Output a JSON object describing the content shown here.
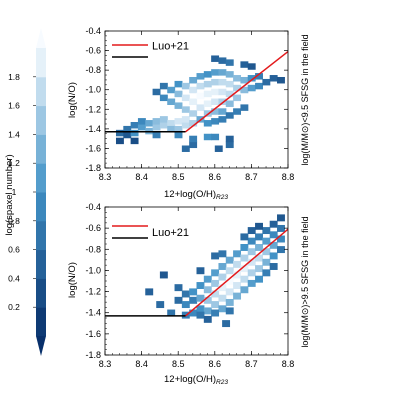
{
  "colorbar": {
    "label": "log(spaxel number)",
    "ticks": [
      0.2,
      0.4,
      0.6,
      0.8,
      1,
      1.2,
      1.4,
      1.6,
      1.8
    ],
    "range": [
      0.0,
      2.0
    ],
    "color_low": "#08306b",
    "color_high": "#f7fbff"
  },
  "chart_data": [
    {
      "type": "heatmap",
      "panel": "top",
      "xlabel_main": "12+log(O/H)",
      "xlabel_sub": "R23",
      "ylabel": "log(N/O)",
      "right_label": "log(M/M⊙)<9.5 SFSG in the field",
      "xlim": [
        8.3,
        8.8
      ],
      "ylim": [
        -1.8,
        -0.4
      ],
      "xticks": [
        8.3,
        8.4,
        8.5,
        8.6,
        8.7,
        8.8
      ],
      "yticks": [
        -1.8,
        -1.6,
        -1.4,
        -1.2,
        -1.0,
        -0.8,
        -0.6,
        -0.4
      ],
      "legend": [
        {
          "label": "Luo+21",
          "color": "#e31a1c"
        },
        {
          "label": "",
          "color": "#000000"
        }
      ],
      "lines": [
        {
          "color": "#e31a1c",
          "points": [
            [
              8.52,
              -1.43
            ],
            [
              8.8,
              -0.61
            ]
          ]
        },
        {
          "color": "#000000",
          "points": [
            [
              8.3,
              -1.43
            ],
            [
              8.52,
              -1.43
            ]
          ]
        }
      ],
      "cells": [
        [
          8.34,
          -1.44,
          0.6
        ],
        [
          8.36,
          -1.46,
          0.4
        ],
        [
          8.36,
          -1.4,
          0.7
        ],
        [
          8.38,
          -1.36,
          0.8
        ],
        [
          8.38,
          -1.44,
          1.0
        ],
        [
          8.4,
          -1.38,
          1.1
        ],
        [
          8.4,
          -1.32,
          0.9
        ],
        [
          8.42,
          -1.34,
          1.2
        ],
        [
          8.42,
          -1.42,
          1.3
        ],
        [
          8.44,
          -1.38,
          1.5
        ],
        [
          8.44,
          -1.32,
          1.4
        ],
        [
          8.46,
          -1.36,
          1.6
        ],
        [
          8.46,
          -1.3,
          1.5
        ],
        [
          8.48,
          -1.34,
          1.7
        ],
        [
          8.48,
          -1.4,
          1.4
        ],
        [
          8.5,
          -1.32,
          1.8
        ],
        [
          8.5,
          -1.4,
          1.5
        ],
        [
          8.52,
          -1.36,
          1.7
        ],
        [
          8.52,
          -1.3,
          1.8
        ],
        [
          8.54,
          -1.34,
          1.6
        ],
        [
          8.38,
          -1.52,
          0.3
        ],
        [
          8.34,
          -1.52,
          0.3
        ],
        [
          8.44,
          -1.46,
          0.8
        ],
        [
          8.5,
          -1.46,
          0.9
        ],
        [
          8.44,
          -1.02,
          0.6
        ],
        [
          8.46,
          -1.08,
          0.9
        ],
        [
          8.46,
          -0.96,
          0.7
        ],
        [
          8.48,
          -1.0,
          1.1
        ],
        [
          8.48,
          -1.12,
          1.2
        ],
        [
          8.5,
          -0.94,
          1.0
        ],
        [
          8.5,
          -1.04,
          1.4
        ],
        [
          8.5,
          -1.16,
          1.3
        ],
        [
          8.52,
          -0.96,
          1.5
        ],
        [
          8.52,
          -1.08,
          1.8
        ],
        [
          8.52,
          -1.2,
          1.5
        ],
        [
          8.54,
          -0.9,
          1.2
        ],
        [
          8.54,
          -1.0,
          1.8
        ],
        [
          8.54,
          -1.12,
          1.9
        ],
        [
          8.54,
          -1.24,
          1.6
        ],
        [
          8.56,
          -0.86,
          1.1
        ],
        [
          8.56,
          -0.96,
          1.7
        ],
        [
          8.56,
          -1.06,
          2.0
        ],
        [
          8.56,
          -1.18,
          1.8
        ],
        [
          8.58,
          -0.84,
          1.0
        ],
        [
          8.58,
          -0.94,
          1.6
        ],
        [
          8.58,
          -1.04,
          1.9
        ],
        [
          8.58,
          -1.14,
          1.9
        ],
        [
          8.58,
          -1.24,
          1.5
        ],
        [
          8.6,
          -0.82,
          1.1
        ],
        [
          8.6,
          -0.92,
          1.6
        ],
        [
          8.6,
          -1.02,
          1.9
        ],
        [
          8.6,
          -1.12,
          1.8
        ],
        [
          8.6,
          -1.22,
          1.4
        ],
        [
          8.62,
          -0.82,
          1.2
        ],
        [
          8.62,
          -0.92,
          1.7
        ],
        [
          8.62,
          -1.02,
          1.8
        ],
        [
          8.62,
          -1.12,
          1.6
        ],
        [
          8.62,
          -1.22,
          1.2
        ],
        [
          8.64,
          -0.84,
          1.3
        ],
        [
          8.64,
          -0.94,
          1.7
        ],
        [
          8.64,
          -1.04,
          1.7
        ],
        [
          8.64,
          -1.14,
          1.4
        ],
        [
          8.66,
          -0.88,
          1.4
        ],
        [
          8.66,
          -0.98,
          1.6
        ],
        [
          8.66,
          -1.08,
          1.5
        ],
        [
          8.68,
          -0.9,
          1.3
        ],
        [
          8.68,
          -1.0,
          1.4
        ],
        [
          8.7,
          -0.88,
          1.0
        ],
        [
          8.7,
          -0.98,
          1.1
        ],
        [
          8.72,
          -0.86,
          0.8
        ],
        [
          8.72,
          -0.96,
          0.9
        ],
        [
          8.74,
          -0.92,
          0.6
        ],
        [
          8.76,
          -0.88,
          0.5
        ],
        [
          8.78,
          -0.9,
          0.4
        ],
        [
          8.6,
          -0.68,
          0.5
        ],
        [
          8.62,
          -0.7,
          0.6
        ],
        [
          8.64,
          -0.72,
          0.7
        ],
        [
          8.68,
          -0.74,
          0.5
        ],
        [
          8.7,
          -0.76,
          0.4
        ],
        [
          8.56,
          -1.3,
          1.2
        ],
        [
          8.58,
          -1.34,
          1.0
        ],
        [
          8.6,
          -1.32,
          0.9
        ],
        [
          8.62,
          -1.3,
          0.8
        ],
        [
          8.64,
          -1.26,
          0.7
        ],
        [
          8.66,
          -1.22,
          0.8
        ],
        [
          8.68,
          -1.18,
          0.7
        ],
        [
          8.54,
          -1.56,
          0.6
        ],
        [
          8.54,
          -1.5,
          0.8
        ],
        [
          8.58,
          -1.48,
          1.0
        ],
        [
          8.6,
          -1.48,
          0.9
        ],
        [
          8.61,
          -1.6,
          0.5
        ],
        [
          8.64,
          -1.56,
          0.6
        ],
        [
          8.52,
          -1.6,
          0.6
        ],
        [
          8.64,
          -1.5,
          0.5
        ]
      ]
    },
    {
      "type": "heatmap",
      "panel": "bottom",
      "xlabel_main": "12+log(O/H)",
      "xlabel_sub": "R23",
      "ylabel": "log(N/O)",
      "right_label": "log(M/M⊙)>9.5 SFSG in the field",
      "xlim": [
        8.3,
        8.8
      ],
      "ylim": [
        -1.8,
        -0.4
      ],
      "xticks": [
        8.3,
        8.4,
        8.5,
        8.6,
        8.7,
        8.8
      ],
      "yticks": [
        -1.8,
        -1.6,
        -1.4,
        -1.2,
        -1.0,
        -0.8,
        -0.6,
        -0.4
      ],
      "legend": [
        {
          "label": "Luo+21",
          "color": "#e31a1c"
        },
        {
          "label": "",
          "color": "#000000"
        }
      ],
      "lines": [
        {
          "color": "#e31a1c",
          "points": [
            [
              8.52,
              -1.43
            ],
            [
              8.8,
              -0.61
            ]
          ]
        },
        {
          "color": "#000000",
          "points": [
            [
              8.3,
              -1.43
            ],
            [
              8.52,
              -1.43
            ]
          ]
        }
      ],
      "cells": [
        [
          8.46,
          -1.04,
          0.4
        ],
        [
          8.42,
          -1.2,
          0.5
        ],
        [
          8.5,
          -1.16,
          0.6
        ],
        [
          8.52,
          -1.22,
          0.7
        ],
        [
          8.54,
          -1.28,
          0.8
        ],
        [
          8.5,
          -1.28,
          0.6
        ],
        [
          8.52,
          -1.32,
          0.9
        ],
        [
          8.54,
          -1.2,
          1.0
        ],
        [
          8.56,
          -1.14,
          1.0
        ],
        [
          8.56,
          -1.26,
          1.2
        ],
        [
          8.56,
          -1.36,
          1.0
        ],
        [
          8.58,
          -1.08,
          1.1
        ],
        [
          8.58,
          -1.18,
          1.4
        ],
        [
          8.58,
          -1.28,
          1.5
        ],
        [
          8.58,
          -1.38,
          1.2
        ],
        [
          8.6,
          -1.02,
          1.1
        ],
        [
          8.6,
          -1.12,
          1.5
        ],
        [
          8.6,
          -1.22,
          1.7
        ],
        [
          8.6,
          -1.32,
          1.5
        ],
        [
          8.62,
          -0.96,
          1.2
        ],
        [
          8.62,
          -1.06,
          1.6
        ],
        [
          8.62,
          -1.16,
          1.9
        ],
        [
          8.62,
          -1.26,
          1.7
        ],
        [
          8.62,
          -1.36,
          1.2
        ],
        [
          8.64,
          -0.9,
          1.2
        ],
        [
          8.64,
          -1.0,
          1.7
        ],
        [
          8.64,
          -1.1,
          2.0
        ],
        [
          8.64,
          -1.2,
          1.8
        ],
        [
          8.64,
          -1.3,
          1.3
        ],
        [
          8.66,
          -0.84,
          1.1
        ],
        [
          8.66,
          -0.94,
          1.7
        ],
        [
          8.66,
          -1.04,
          1.9
        ],
        [
          8.66,
          -1.14,
          1.8
        ],
        [
          8.66,
          -1.24,
          1.3
        ],
        [
          8.68,
          -0.78,
          1.0
        ],
        [
          8.68,
          -0.88,
          1.6
        ],
        [
          8.68,
          -0.98,
          1.9
        ],
        [
          8.68,
          -1.08,
          1.7
        ],
        [
          8.68,
          -1.18,
          1.2
        ],
        [
          8.7,
          -0.72,
          0.9
        ],
        [
          8.7,
          -0.82,
          1.5
        ],
        [
          8.7,
          -0.92,
          1.8
        ],
        [
          8.7,
          -1.02,
          1.6
        ],
        [
          8.7,
          -1.12,
          1.1
        ],
        [
          8.72,
          -0.68,
          0.8
        ],
        [
          8.72,
          -0.78,
          1.3
        ],
        [
          8.72,
          -0.88,
          1.7
        ],
        [
          8.72,
          -0.98,
          1.5
        ],
        [
          8.72,
          -1.08,
          1.0
        ],
        [
          8.74,
          -0.62,
          0.7
        ],
        [
          8.74,
          -0.72,
          1.1
        ],
        [
          8.74,
          -0.82,
          1.5
        ],
        [
          8.74,
          -0.92,
          1.3
        ],
        [
          8.74,
          -1.02,
          0.8
        ],
        [
          8.76,
          -0.56,
          0.5
        ],
        [
          8.76,
          -0.66,
          0.9
        ],
        [
          8.76,
          -0.76,
          1.2
        ],
        [
          8.76,
          -0.86,
          1.0
        ],
        [
          8.76,
          -0.96,
          0.6
        ],
        [
          8.78,
          -0.5,
          0.4
        ],
        [
          8.78,
          -0.6,
          0.7
        ],
        [
          8.78,
          -0.7,
          0.9
        ],
        [
          8.78,
          -0.8,
          0.7
        ],
        [
          8.68,
          -0.68,
          0.6
        ],
        [
          8.7,
          -0.62,
          0.5
        ],
        [
          8.6,
          -0.86,
          0.6
        ],
        [
          8.62,
          -0.84,
          0.7
        ],
        [
          8.72,
          -0.58,
          0.4
        ],
        [
          8.56,
          -1.0,
          0.5
        ],
        [
          8.45,
          -1.32,
          0.6
        ],
        [
          8.48,
          -1.4,
          0.7
        ],
        [
          8.52,
          -1.42,
          0.8
        ],
        [
          8.54,
          -1.4,
          0.9
        ],
        [
          8.56,
          -1.42,
          0.7
        ],
        [
          8.6,
          -1.4,
          0.8
        ],
        [
          8.64,
          -1.38,
          0.7
        ],
        [
          8.63,
          -1.5,
          0.6
        ],
        [
          8.58,
          -1.46,
          0.5
        ]
      ]
    }
  ]
}
